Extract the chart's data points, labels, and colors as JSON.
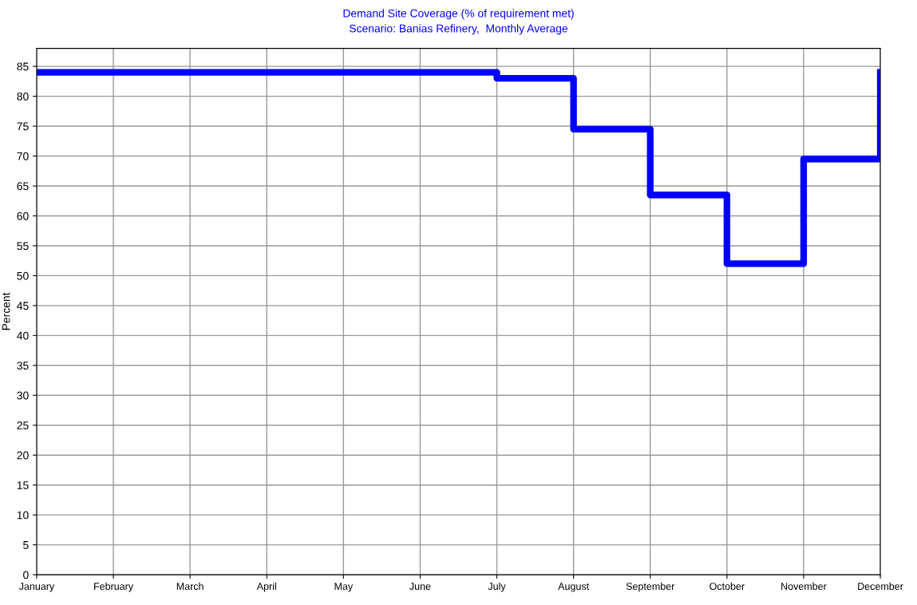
{
  "chart_data": {
    "type": "step",
    "title": "Demand Site Coverage (% of requirement met)",
    "subtitle": "Scenario: Banias Refinery,  Monthly Average",
    "ylabel": "Percent",
    "categories": [
      "January",
      "February",
      "March",
      "April",
      "May",
      "June",
      "July",
      "August",
      "September",
      "October",
      "November",
      "December"
    ],
    "series": [
      {
        "color": "#0000ff",
        "values": [
          84,
          84,
          84,
          84,
          84,
          84,
          83,
          74.5,
          63.5,
          52,
          69.5,
          84
        ]
      }
    ],
    "ylim": [
      0,
      88
    ],
    "yticks": [
      0,
      5,
      10,
      15,
      20,
      25,
      30,
      35,
      40,
      45,
      50,
      55,
      60,
      65,
      70,
      75,
      80,
      85
    ],
    "grid": true
  }
}
